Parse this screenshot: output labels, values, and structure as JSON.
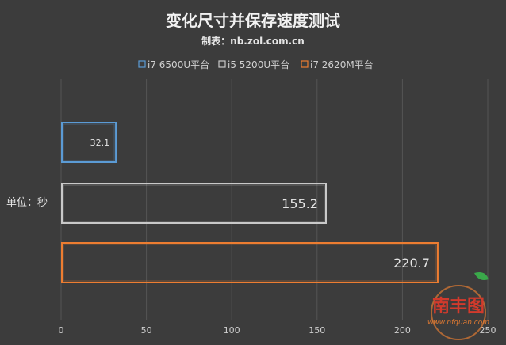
{
  "chart_data": {
    "type": "bar",
    "orientation": "horizontal",
    "title": "变化尺寸并保存速度测试",
    "subtitle": "制表：nb.zol.com.cn",
    "ylabel": "单位：秒",
    "xlabel": "",
    "xlim": [
      0,
      250
    ],
    "xticks": [
      0,
      50,
      100,
      150,
      200,
      250
    ],
    "grid": true,
    "legend_position": "top",
    "series": [
      {
        "name": "i7 6500U平台",
        "value": 32.1,
        "label": "32.1",
        "color": "#5b9bd5"
      },
      {
        "name": "i5 5200U平台",
        "value": 155.2,
        "label": "155.2",
        "color": "#c9c9c9"
      },
      {
        "name": "i7 2620M平台",
        "value": 220.7,
        "label": "220.7",
        "color": "#ed7d31"
      }
    ]
  },
  "watermark": {
    "brand": "南丰图",
    "url": "www.nfquan.com"
  }
}
